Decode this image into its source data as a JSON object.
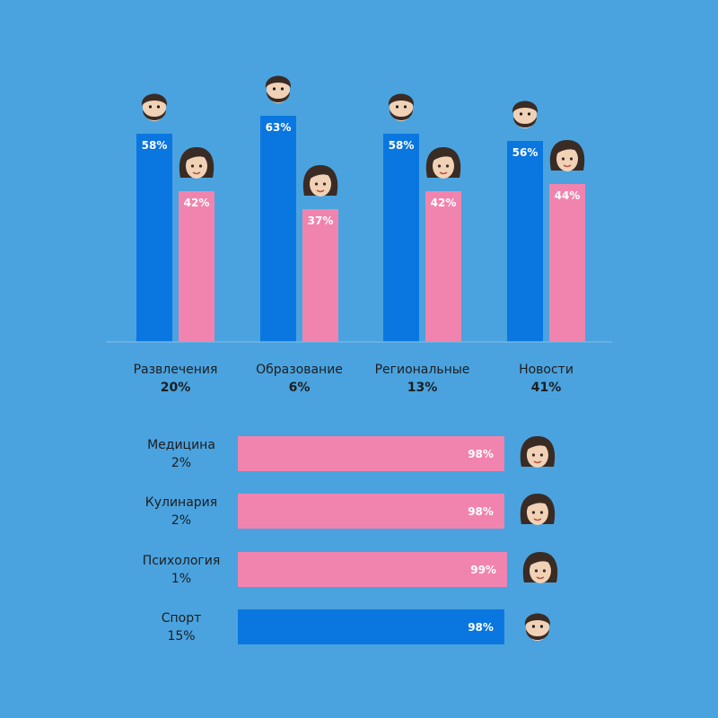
{
  "colors": {
    "background": "#4aa3de",
    "male": "#0a76e0",
    "female": "#f184ae",
    "text": "#1d1d1f",
    "bar_label": "#ffffff"
  },
  "icons": {
    "male": "man-emoji-icon",
    "female": "woman-emoji-icon"
  },
  "chart_data": [
    {
      "type": "bar",
      "orientation": "vertical",
      "categories": [
        "Развлечения",
        "Образование",
        "Региональные",
        "Новости"
      ],
      "category_shares": [
        "20%",
        "6%",
        "13%",
        "41%"
      ],
      "series": [
        {
          "key": "male",
          "values": [
            58,
            63,
            58,
            56
          ],
          "labels": [
            "58%",
            "63%",
            "58%",
            "56%"
          ]
        },
        {
          "key": "female",
          "values": [
            42,
            37,
            42,
            44
          ],
          "labels": [
            "42%",
            "37%",
            "42%",
            "44%"
          ]
        }
      ],
      "ylim": [
        0,
        100
      ]
    },
    {
      "type": "bar",
      "orientation": "horizontal",
      "rows": [
        {
          "name": "Медицина",
          "share": "2%",
          "dominant": "female",
          "value": 98,
          "label": "98%"
        },
        {
          "name": "Кулинария",
          "share": "2%",
          "dominant": "female",
          "value": 98,
          "label": "98%"
        },
        {
          "name": "Психология",
          "share": "1%",
          "dominant": "female",
          "value": 99,
          "label": "99%"
        },
        {
          "name": "Спорт",
          "share": "15%",
          "dominant": "male",
          "value": 98,
          "label": "98%"
        }
      ],
      "xlim": [
        0,
        100
      ]
    }
  ]
}
